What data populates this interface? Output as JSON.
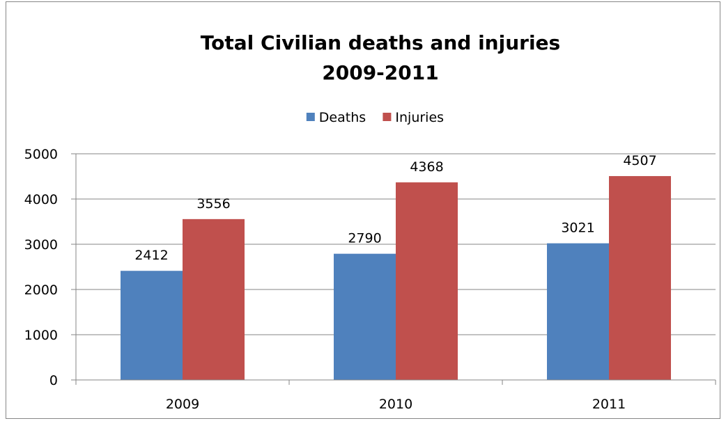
{
  "chart_data": {
    "type": "bar",
    "title": "Total Civilian deaths and injuries",
    "subtitle": "2009-2011",
    "categories": [
      "2009",
      "2010",
      "2011"
    ],
    "series": [
      {
        "name": "Deaths",
        "color": "#4F81BD",
        "values": [
          2412,
          2790,
          3021
        ]
      },
      {
        "name": "Injuries",
        "color": "#C0504D",
        "values": [
          3556,
          4368,
          4507
        ]
      }
    ],
    "xlabel": "",
    "ylabel": "",
    "ylim": [
      0,
      5000
    ],
    "yticks": [
      0,
      1000,
      2000,
      3000,
      4000,
      5000
    ],
    "grid": true,
    "legend_position": "top",
    "data_labels": true
  }
}
